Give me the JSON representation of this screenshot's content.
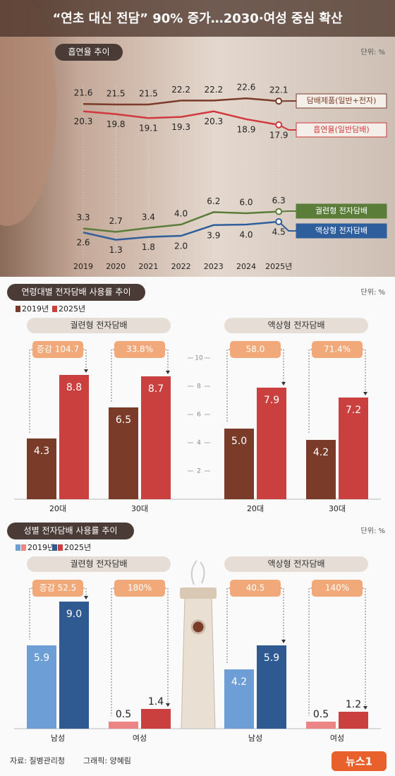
{
  "title": "“연초 대신 전담” 90% 증가…2030·여성 중심 확산",
  "chart_data": [
    {
      "type": "line",
      "title": "흡연율 추이",
      "unit": "단위: %",
      "categories": [
        "2019",
        "2020",
        "2021",
        "2022",
        "2023",
        "2024",
        "2025년"
      ],
      "series": [
        {
          "name": "담배제품(일반+전자)",
          "color": "#7a3b28",
          "values": [
            21.6,
            21.5,
            21.5,
            22.2,
            22.2,
            22.6,
            22.1
          ],
          "value_labels": [
            "21.6",
            "21.5",
            "21.5",
            "22.2",
            "22.2",
            "22.6",
            "22.1"
          ]
        },
        {
          "name": "흡연율(일반담배)",
          "color": "#d0393d",
          "values": [
            20.3,
            19.8,
            19.1,
            19.3,
            20.3,
            18.9,
            17.9
          ],
          "value_labels": [
            "20.3",
            "19.8",
            "19.1",
            "19.3",
            "20.3",
            "18.9",
            "17.9"
          ]
        },
        {
          "name": "궐련형 전자담배",
          "color": "#5a7d3a",
          "values": [
            3.3,
            2.7,
            3.4,
            4.0,
            6.2,
            6.0,
            6.3
          ],
          "value_labels": [
            "3.3",
            "2.7",
            "3.4",
            "4.0",
            "6.2",
            "6.0",
            "6.3"
          ]
        },
        {
          "name": "액상형 전자담배",
          "color": "#2f5e9c",
          "values": [
            2.6,
            1.3,
            1.8,
            2.0,
            3.9,
            4.0,
            4.5
          ],
          "value_labels": [
            "2.6",
            "1.3",
            "1.8",
            "2.0",
            "3.9",
            "4.0",
            "4.5"
          ]
        }
      ]
    },
    {
      "type": "bar",
      "title": "연령대별 전자담배 사용률 추이",
      "unit": "단위: %",
      "panel_titles": [
        "궐련형 전자담배",
        "액상형 전자담배"
      ],
      "categories": [
        "20대",
        "30대",
        "20대",
        "30대"
      ],
      "series": [
        {
          "name": "2019년",
          "color": "#7a3b28",
          "values": [
            4.3,
            6.5,
            5.0,
            4.2
          ],
          "value_labels": [
            "4.3",
            "6.5",
            "5.0",
            "4.2"
          ]
        },
        {
          "name": "2025년",
          "color": "#c9403f",
          "values": [
            8.8,
            8.7,
            7.9,
            7.2
          ],
          "value_labels": [
            "8.8",
            "8.7",
            "7.9",
            "7.2"
          ]
        }
      ],
      "change_labels": [
        "증감 104.7",
        "33.8%",
        "58.0",
        "71.4%"
      ],
      "ylim": [
        0,
        10
      ],
      "yticks": [
        2,
        4,
        6,
        8,
        10
      ]
    },
    {
      "type": "bar",
      "title": "성별 전자담배 사용률 추이",
      "unit": "단위: %",
      "panel_titles": [
        "궐련형 전자담배",
        "액상형 전자담배"
      ],
      "categories": [
        "남성",
        "여성",
        "남성",
        "여성"
      ],
      "series": [
        {
          "name": "2019년",
          "colors": [
            "#6d9fd6",
            "#ec8585",
            "#6d9fd6",
            "#ec8585"
          ],
          "values": [
            5.9,
            0.5,
            4.2,
            0.5
          ],
          "value_labels": [
            "5.9",
            "0.5",
            "4.2",
            "0.5"
          ]
        },
        {
          "name": "2025년",
          "colors": [
            "#2f5a91",
            "#c9403f",
            "#2f5a91",
            "#c9403f"
          ],
          "values": [
            9.0,
            1.4,
            5.9,
            1.2
          ],
          "value_labels": [
            "9.0",
            "1.4",
            "5.9",
            "1.2"
          ]
        }
      ],
      "change_labels": [
        "증감 52.5",
        "180%",
        "40.5",
        "140%"
      ]
    }
  ],
  "footer": {
    "source": "자료: 질병관리청",
    "credit": "그래픽: 양혜림",
    "logo": "뉴스1"
  }
}
